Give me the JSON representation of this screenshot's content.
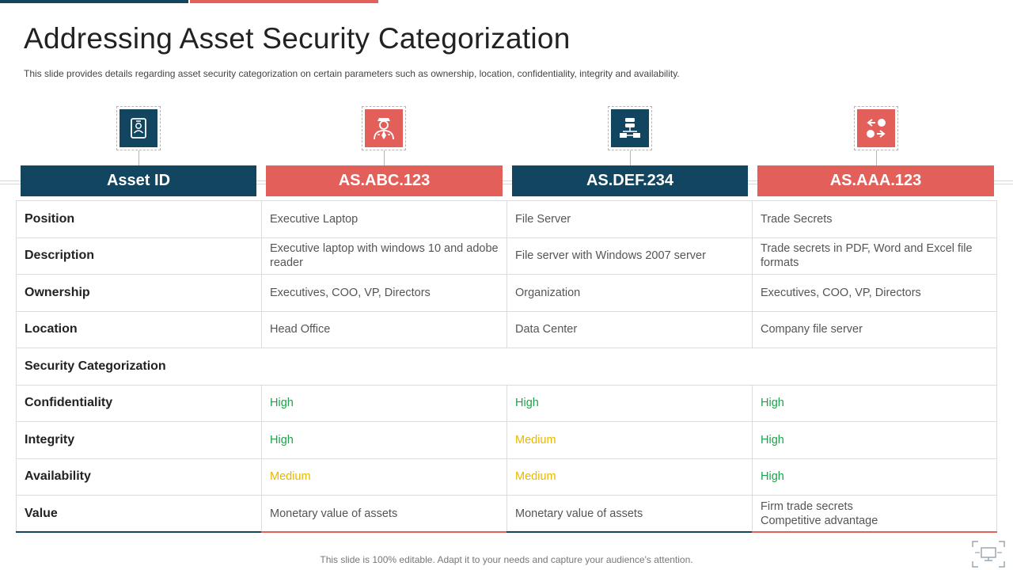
{
  "slide": {
    "title": "Addressing Asset Security Categorization",
    "subtitle": "This slide provides  details regarding  asset security categorization on certain parameters  such as ownership,  location,  confidentiality,  integrity and  availability.",
    "footer": "This slide is 100% editable. Adapt it to your needs and capture your audience's attention."
  },
  "colors": {
    "navy": "#124660",
    "red": "#e3605a",
    "high": "#1aa34a",
    "medium": "#e6b800"
  },
  "columns": [
    {
      "header": "Asset ID",
      "icon": "id-badge-icon",
      "theme": "navy"
    },
    {
      "header": "AS.ABC.123",
      "icon": "executive-person-icon",
      "theme": "red"
    },
    {
      "header": "AS.DEF.234",
      "icon": "server-network-icon",
      "theme": "navy"
    },
    {
      "header": "AS.AAA.123",
      "icon": "shapes-exchange-icon",
      "theme": "red"
    }
  ],
  "table": {
    "position": {
      "label": "Position",
      "values": [
        "Executive Laptop",
        "File Server",
        "Trade Secrets"
      ]
    },
    "description": {
      "label": "Description",
      "values": [
        "Executive laptop with windows 10 and adobe reader",
        "File server with Windows 2007 server",
        "Trade secrets in PDF, Word and Excel file formats"
      ]
    },
    "ownership": {
      "label": "Ownership",
      "values": [
        "Executives, COO, VP, Directors",
        "Organization",
        "Executives, COO, VP, Directors"
      ]
    },
    "location": {
      "label": "Location",
      "values": [
        "Head Office",
        "Data Center",
        "Company file server"
      ]
    },
    "section": "Security Categorization",
    "confidentiality": {
      "label": "Confidentiality",
      "values": [
        "High",
        "High",
        "High"
      ]
    },
    "integrity": {
      "label": "Integrity",
      "values": [
        "High",
        "Medium",
        "High"
      ]
    },
    "availability": {
      "label": "Availability",
      "values": [
        "Medium",
        "Medium",
        "High"
      ]
    },
    "value": {
      "label": "Value",
      "values": [
        "Monetary value of assets",
        "Monetary value of assets",
        "Firm trade secrets"
      ],
      "extra_line": "Competitive advantage"
    }
  }
}
